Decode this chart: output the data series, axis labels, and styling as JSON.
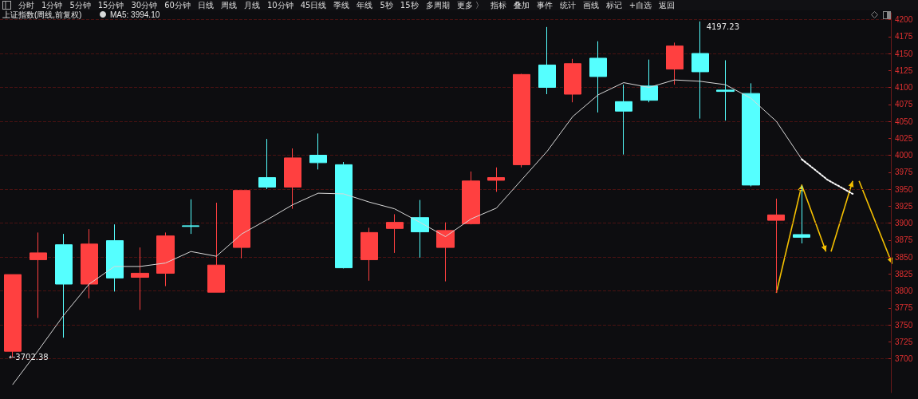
{
  "chart_data": {
    "type": "candlestick",
    "title": "上证指数(周线,前复权)",
    "categories": [
      null,
      null,
      null,
      null,
      null,
      null,
      null,
      null,
      null,
      null,
      null,
      null,
      null,
      null,
      null,
      null,
      null,
      null,
      null,
      null,
      null,
      null,
      null,
      null,
      null,
      null,
      null,
      null,
      null,
      null,
      null,
      null,
      null,
      null,
      null
    ],
    "series": [
      {
        "type": "candlestick",
        "ohlc": [
          [
            3711,
            3824,
            3702.38,
            3824
          ],
          [
            3846,
            3886,
            3760,
            3856
          ],
          [
            3868,
            3884,
            3731,
            3810
          ],
          [
            3810,
            3891,
            3789,
            3869
          ],
          [
            3874,
            3898,
            3799,
            3819
          ],
          [
            3820,
            3864,
            3772,
            3826
          ],
          [
            3826,
            3886,
            3807,
            3881
          ],
          [
            3896,
            3935,
            3884,
            3895
          ],
          [
            3798,
            3930,
            3798,
            3838
          ],
          [
            3864,
            3948,
            3848,
            3948
          ],
          [
            3967,
            4024,
            3950,
            3953
          ],
          [
            3953,
            4010,
            3921,
            3996
          ],
          [
            4000,
            4032,
            3979,
            3989
          ],
          [
            3986,
            3990,
            3833,
            3834
          ],
          [
            3846,
            3893,
            3815,
            3886
          ],
          [
            3892,
            3913,
            3856,
            3901
          ],
          [
            3908,
            3934,
            3849,
            3887
          ],
          [
            3864,
            3901,
            3814,
            3889
          ],
          [
            3899,
            3976,
            3898,
            3962
          ],
          [
            3963,
            3982,
            3946,
            3967
          ],
          [
            3986,
            4120,
            3982,
            4119
          ],
          [
            4133,
            4189,
            4090,
            4100
          ],
          [
            4090,
            4142,
            4078,
            4135
          ],
          [
            4143,
            4168,
            4063,
            4116
          ],
          [
            4079,
            4104,
            4001,
            4065
          ],
          [
            4102,
            4141,
            4078,
            4081
          ],
          [
            4127,
            4166,
            4104,
            4161
          ],
          [
            4150,
            4197.23,
            4054,
            4123
          ],
          [
            4096,
            4140,
            4051,
            4094
          ],
          [
            4091,
            4106,
            3954,
            3956
          ],
          [
            3904,
            3936,
            3797,
            3912
          ],
          [
            3883,
            3955,
            3870,
            3879
          ],
          null,
          null,
          null
        ],
        "colors": [
          "#ff4040",
          "#ff4040",
          "#55ffff",
          "#ff4040",
          "#55ffff",
          "#ff4040",
          "#ff4040",
          "#55ffff",
          "#ff4040",
          "#ff4040",
          "#55ffff",
          "#ff4040",
          "#55ffff",
          "#55ffff",
          "#ff4040",
          "#ff4040",
          "#55ffff",
          "#ff4040",
          "#ff4040",
          "#ff4040",
          "#ff4040",
          "#55ffff",
          "#ff4040",
          "#55ffff",
          "#55ffff",
          "#55ffff",
          "#ff4040",
          "#55ffff",
          "#55ffff",
          "#55ffff",
          "#ff4040",
          "#55ffff",
          null,
          null,
          null
        ]
      },
      {
        "type": "line",
        "name": "MA5: 3994.10",
        "color": "#d8d8d8",
        "values": [
          3662,
          3712,
          3764,
          3810,
          3836,
          3836,
          3841,
          3858,
          3851,
          3884,
          3905,
          3927,
          3944,
          3943,
          3931,
          3921,
          3901,
          3880,
          3906,
          3922,
          3964,
          4006,
          4057,
          4089,
          4107,
          4100,
          4111,
          4109,
          4104,
          4084,
          4050,
          3994,
          null,
          null,
          null
        ]
      },
      {
        "type": "line",
        "color": "#ffffff",
        "line_style": "dotted",
        "values": [
          null,
          null,
          null,
          null,
          null,
          null,
          null,
          null,
          null,
          null,
          null,
          null,
          null,
          null,
          null,
          null,
          null,
          null,
          null,
          null,
          null,
          null,
          null,
          null,
          null,
          null,
          null,
          null,
          null,
          null,
          null,
          3994,
          3964,
          3943,
          null
        ]
      }
    ],
    "ylim": [
      3650,
      4210
    ],
    "yticks": [
      3700,
      3725,
      3750,
      3775,
      3800,
      3825,
      3850,
      3875,
      3900,
      3925,
      3950,
      3975,
      4000,
      4025,
      4050,
      4075,
      4100,
      4125,
      4150,
      4175,
      4200
    ],
    "grid": "y",
    "legend": "top left",
    "marker": "none",
    "annotations": [
      "分时",
      "1分钟",
      "5分钟",
      "15分钟",
      "30分钟",
      "60分钟",
      "日线",
      "周线",
      "月线",
      "10分钟",
      "45日线",
      "季线",
      "年线",
      "5秒",
      "15秒",
      "多周期",
      "更多 〉",
      "指标",
      "叠加",
      "事件",
      "统计",
      "画线",
      "标记",
      "+自选",
      "返回",
      "4197.23",
      "←3702.38"
    ]
  }
}
